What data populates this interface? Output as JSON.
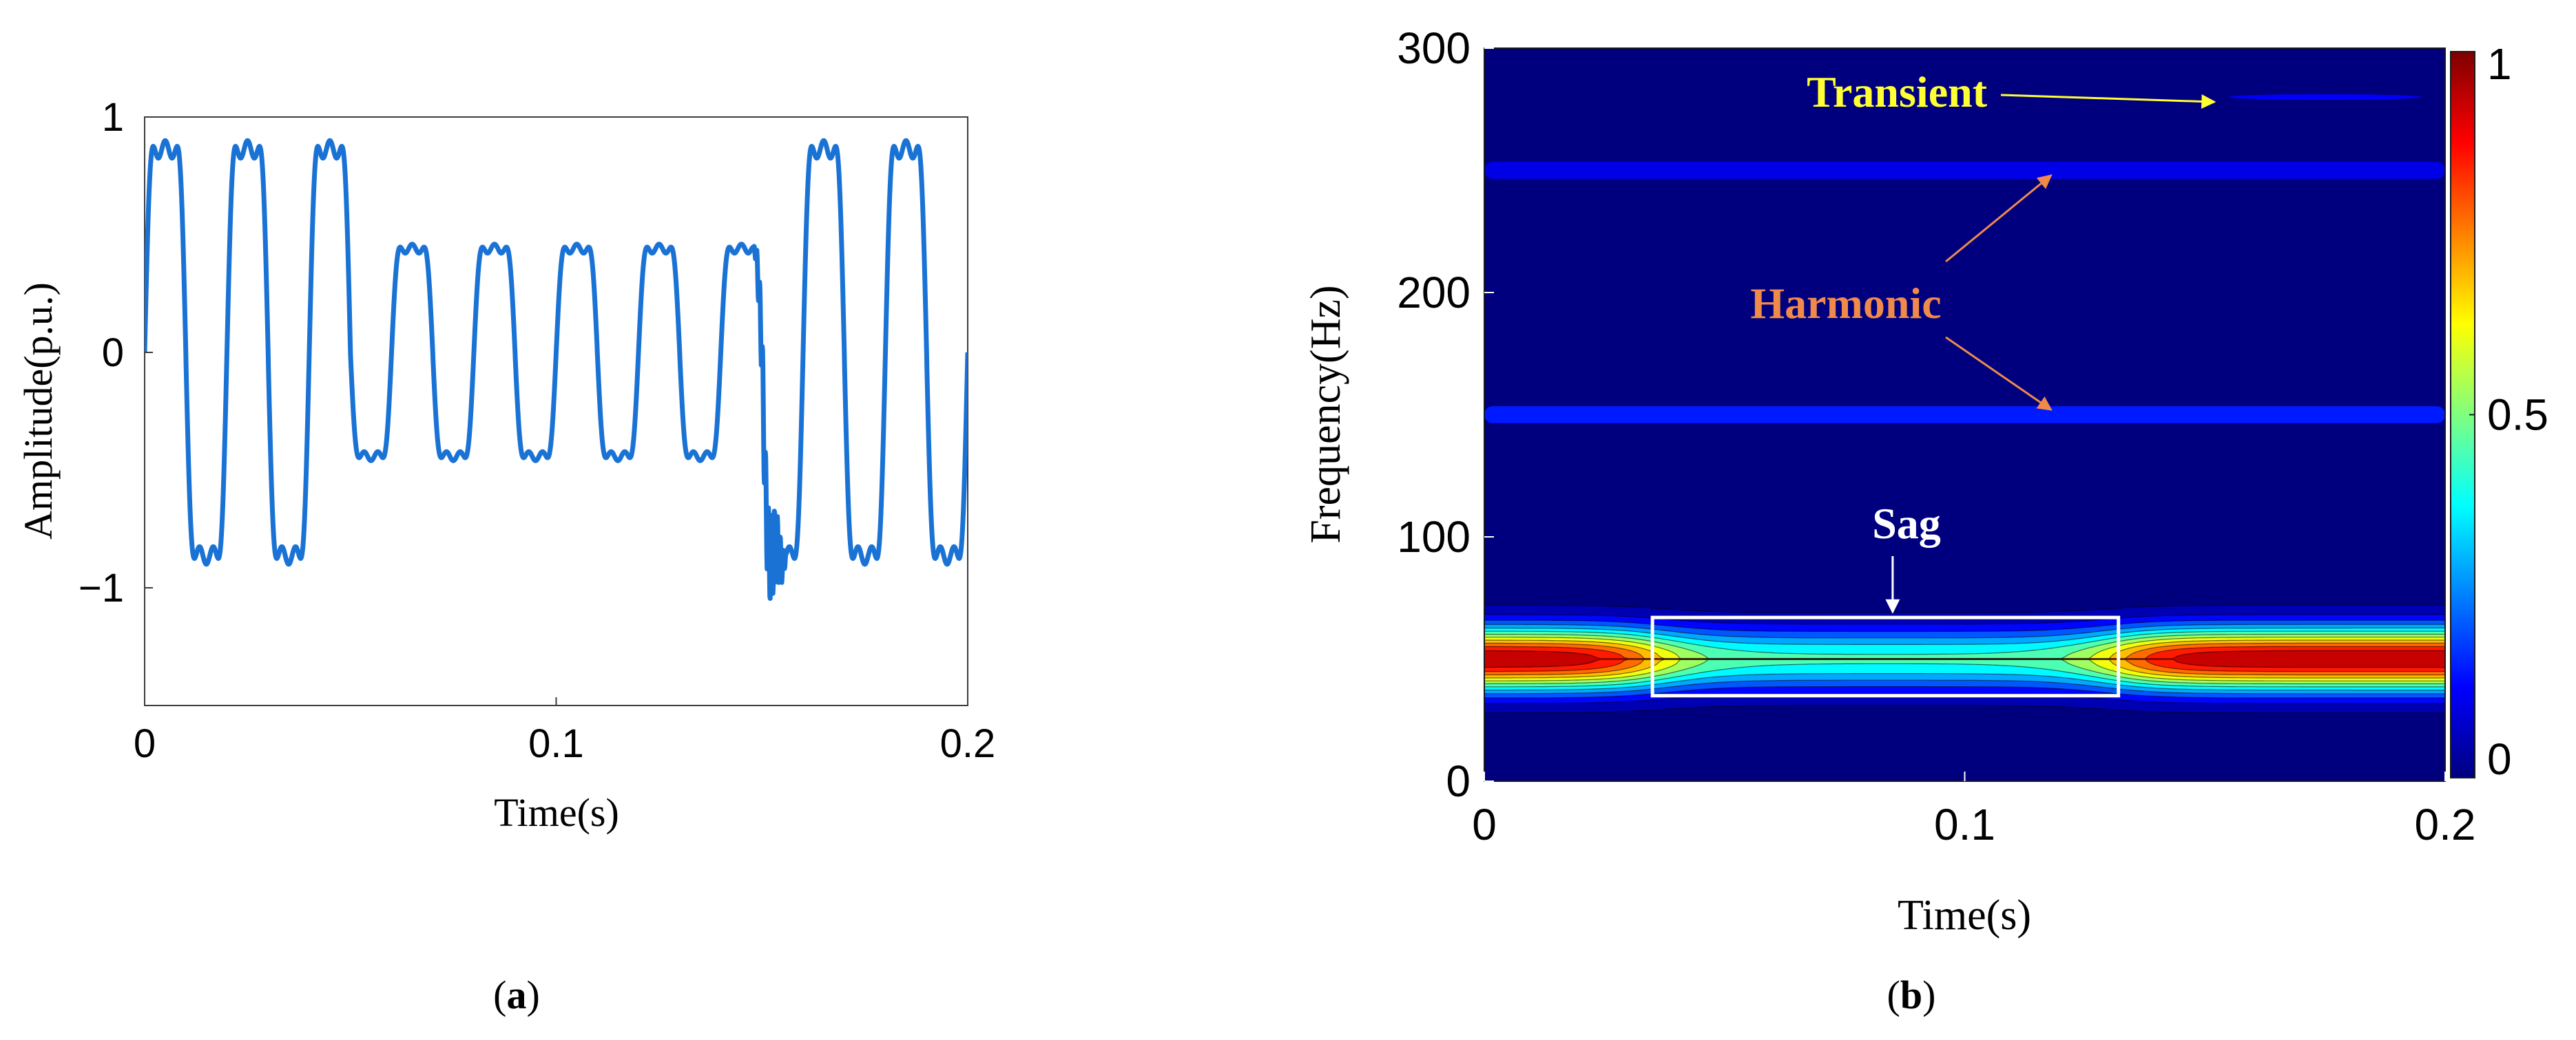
{
  "chart_data": [
    {
      "type": "line",
      "panel_label": "(a)",
      "panel_label_parts": {
        "open": "(",
        "letter": "a",
        "close": ")"
      },
      "xlabel": "Time(s)",
      "ylabel": "Amplitude(p.u.)",
      "xlim": [
        0,
        0.2
      ],
      "ylim": [
        -1.5,
        1
      ],
      "xticks": [
        {
          "value": 0,
          "label": "0"
        },
        {
          "value": 0.1,
          "label": "0.1"
        },
        {
          "value": 0.2,
          "label": "0.2"
        }
      ],
      "yticks": [
        {
          "value": -1,
          "label": "−1"
        },
        {
          "value": 0,
          "label": "0"
        },
        {
          "value": 1,
          "label": "1"
        }
      ],
      "grid": false,
      "series": [
        {
          "color": "#1a73d4",
          "signal": {
            "fundamental_hz": 50,
            "harmonics": [
              {
                "order": 3,
                "relative_amplitude": 0.25
              },
              {
                "order": 5,
                "relative_amplitude": 0.1
              }
            ],
            "normal_amplitude": 0.9,
            "sag": {
              "start": 0.05,
              "end": 0.15,
              "amplitude": 0.46
            },
            "transient": {
              "start": 0.148,
              "end": 0.156,
              "peak": 0.18
            }
          }
        }
      ]
    },
    {
      "type": "heatmap",
      "panel_label": "(b)",
      "panel_label_parts": {
        "open": "(",
        "letter": "b",
        "close": ")"
      },
      "xlabel": "Time(s)",
      "ylabel": "Frequency(Hz)",
      "xlim": [
        0,
        0.2
      ],
      "ylim": [
        0,
        300
      ],
      "xticks": [
        {
          "value": 0,
          "label": "0"
        },
        {
          "value": 0.1,
          "label": "0.1"
        },
        {
          "value": 0.2,
          "label": "0.2"
        }
      ],
      "yticks": [
        {
          "value": 0,
          "label": "0"
        },
        {
          "value": 100,
          "label": "100"
        },
        {
          "value": 200,
          "label": "200"
        },
        {
          "value": 300,
          "label": "300"
        }
      ],
      "colorbar": {
        "range": [
          0,
          1
        ],
        "colormap": "jet",
        "ticks": [
          {
            "value": 0,
            "label": "0"
          },
          {
            "value": 0.5,
            "label": "0.5"
          },
          {
            "value": 1,
            "label": "1"
          }
        ]
      },
      "components": [
        {
          "kind": "fundamental",
          "frequency": 50,
          "intensity_outside_sag": 1.0,
          "intensity_in_sag": 0.46
        },
        {
          "kind": "harmonic",
          "frequency": 150,
          "intensity": 0.15,
          "t_start": 0,
          "t_end": 0.2
        },
        {
          "kind": "harmonic",
          "frequency": 250,
          "intensity": 0.1,
          "t_start": 0,
          "t_end": 0.2
        },
        {
          "kind": "transient",
          "frequency": 280,
          "intensity": 0.12,
          "t_start": 0.155,
          "t_end": 0.195
        }
      ],
      "sag_box": {
        "t_start": 0.035,
        "t_end": 0.132,
        "f_low": 35,
        "f_high": 67
      },
      "annotations": [
        {
          "text": "Transient",
          "color": "#ffff33",
          "target": {
            "t": 0.152,
            "f": 278
          }
        },
        {
          "text": "Harmonic",
          "color": "#f08a4b",
          "targets": [
            {
              "t": 0.118,
              "f": 248
            },
            {
              "t": 0.118,
              "f": 152
            }
          ]
        },
        {
          "text": "Sag",
          "color": "#ffffff",
          "target": {
            "t": 0.085,
            "f": 68
          }
        }
      ]
    }
  ]
}
